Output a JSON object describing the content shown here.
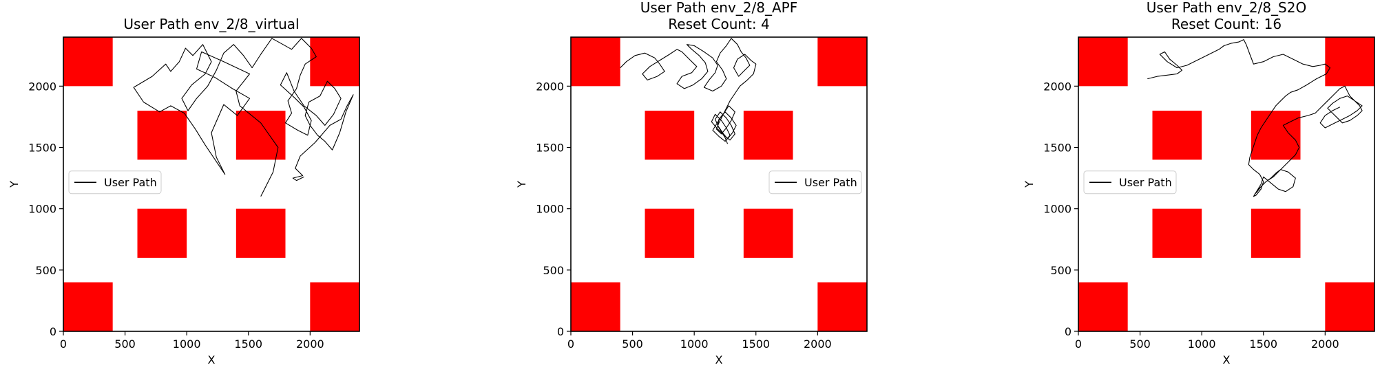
{
  "chart_data": [
    {
      "type": "line",
      "title": "User Path env_2/8_virtual",
      "subtitle": "",
      "xlabel": "X",
      "ylabel": "Y",
      "xlim": [
        0,
        2400
      ],
      "ylim": [
        0,
        2400
      ],
      "xticks": [
        0,
        500,
        1000,
        1500,
        2000
      ],
      "yticks": [
        0,
        500,
        1000,
        1500,
        2000
      ],
      "legend": {
        "label": "User Path",
        "placement": "center-left"
      },
      "obstacle_color": "#ff0000",
      "obstacles": [
        [
          0,
          2000,
          400,
          2400
        ],
        [
          2000,
          2000,
          2400,
          2400
        ],
        [
          600,
          1400,
          1000,
          1800
        ],
        [
          1400,
          1400,
          1800,
          1800
        ],
        [
          600,
          600,
          1000,
          1000
        ],
        [
          1400,
          600,
          1800,
          1000
        ],
        [
          0,
          0,
          400,
          400
        ],
        [
          2000,
          0,
          2400,
          400
        ]
      ],
      "series": [
        {
          "x": [
            1600,
            1700,
            1740,
            1600,
            1430,
            1400,
            1510,
            1300,
            1120,
            1080,
            1230,
            1370,
            1510,
            1410,
            1300,
            1200,
            1240,
            1310,
            1150,
            1070,
            980,
            870,
            780,
            650,
            570,
            720,
            830,
            870,
            940,
            990,
            1050,
            1130,
            1200,
            1150,
            1040,
            960,
            1010,
            1080,
            1170,
            1240,
            1300,
            1380,
            1460,
            1530,
            1600,
            1690,
            1780,
            1850,
            1930,
            2010,
            2050,
            1960,
            1920,
            1890,
            1820,
            1850,
            1800,
            1900,
            1980,
            2010,
            1950,
            1880,
            1760,
            1810,
            1870,
            1950,
            2050,
            2120,
            2190,
            2250,
            2200,
            2140,
            2080,
            1990,
            1960,
            2000,
            2060,
            2120,
            2180,
            2240,
            2290,
            2350,
            2300,
            2250,
            2160,
            2040,
            1920,
            1880,
            1940,
            1860,
            1890,
            1950
          ],
          "y": [
            1100,
            1300,
            1500,
            1700,
            1840,
            1960,
            2100,
            2200,
            2280,
            2140,
            2070,
            1980,
            1900,
            1760,
            1850,
            1620,
            1420,
            1280,
            1520,
            1650,
            1780,
            1840,
            1790,
            1870,
            1990,
            2080,
            2180,
            2120,
            2200,
            2310,
            2250,
            2340,
            2200,
            2100,
            2010,
            1900,
            1800,
            1900,
            2000,
            2130,
            2270,
            2340,
            2250,
            2150,
            2260,
            2390,
            2340,
            2300,
            2390,
            2310,
            2240,
            2180,
            2090,
            1980,
            1880,
            1780,
            1700,
            1640,
            1600,
            1720,
            1830,
            1900,
            2010,
            2110,
            1960,
            1840,
            1760,
            1680,
            1770,
            1900,
            1980,
            2040,
            1920,
            1870,
            1760,
            1680,
            1600,
            1550,
            1480,
            1620,
            1790,
            1930,
            1840,
            1730,
            1680,
            1540,
            1430,
            1330,
            1270,
            1250,
            1230,
            1260
          ]
        }
      ]
    },
    {
      "type": "line",
      "title": "User Path env_2/8_APF",
      "subtitle": "Reset Count: 4",
      "xlabel": "X",
      "ylabel": "Y",
      "xlim": [
        0,
        2400
      ],
      "ylim": [
        0,
        2400
      ],
      "xticks": [
        0,
        500,
        1000,
        1500,
        2000
      ],
      "yticks": [
        0,
        500,
        1000,
        1500,
        2000
      ],
      "legend": {
        "label": "User Path",
        "placement": "center-right"
      },
      "obstacle_color": "#ff0000",
      "obstacles": [
        [
          0,
          2000,
          400,
          2400
        ],
        [
          2000,
          2000,
          2400,
          2400
        ],
        [
          600,
          1400,
          1000,
          1800
        ],
        [
          1400,
          1400,
          1800,
          1800
        ],
        [
          600,
          600,
          1000,
          1000
        ],
        [
          1400,
          600,
          1800,
          1000
        ],
        [
          0,
          0,
          400,
          400
        ],
        [
          2000,
          0,
          2400,
          400
        ]
      ],
      "series": [
        {
          "x": [
            400,
            450,
            520,
            600,
            680,
            720,
            760,
            700,
            620,
            580,
            640,
            720,
            800,
            860,
            900,
            960,
            1020,
            980,
            900,
            860,
            920,
            990,
            1060,
            1110,
            1090,
            1040,
            980,
            940,
            1000,
            1080,
            1150,
            1190,
            1170,
            1120,
            1080,
            1150,
            1220,
            1260,
            1230,
            1180,
            1210,
            1260,
            1300,
            1350,
            1380,
            1420,
            1450,
            1400,
            1360,
            1320,
            1350,
            1410,
            1460,
            1500,
            1480,
            1430,
            1370,
            1330,
            1290,
            1260,
            1230,
            1200,
            1180,
            1220,
            1260,
            1300,
            1330,
            1280,
            1240,
            1200,
            1190,
            1230,
            1270,
            1310,
            1340,
            1300,
            1250,
            1210,
            1180,
            1150,
            1200,
            1250,
            1290,
            1260,
            1220,
            1170,
            1140,
            1190,
            1240,
            1290,
            1330,
            1300,
            1260,
            1210,
            1170,
            1200,
            1250,
            1270
          ],
          "y": [
            2150,
            2200,
            2250,
            2270,
            2230,
            2180,
            2120,
            2080,
            2050,
            2100,
            2160,
            2210,
            2260,
            2300,
            2280,
            2220,
            2160,
            2110,
            2080,
            2020,
            1980,
            2010,
            2060,
            2120,
            2190,
            2250,
            2300,
            2340,
            2330,
            2280,
            2230,
            2170,
            2110,
            2050,
            1990,
            1960,
            2000,
            2060,
            2130,
            2200,
            2270,
            2330,
            2390,
            2340,
            2280,
            2230,
            2170,
            2120,
            2080,
            2150,
            2220,
            2260,
            2210,
            2180,
            2100,
            2050,
            2000,
            1940,
            1880,
            1820,
            1760,
            1700,
            1650,
            1610,
            1660,
            1720,
            1790,
            1840,
            1780,
            1730,
            1680,
            1620,
            1570,
            1620,
            1680,
            1740,
            1790,
            1740,
            1690,
            1640,
            1590,
            1550,
            1600,
            1660,
            1720,
            1770,
            1710,
            1650,
            1600,
            1560,
            1610,
            1680,
            1740,
            1790,
            1730,
            1660,
            1580,
            1530
          ]
        }
      ]
    },
    {
      "type": "line",
      "title": "User Path env_2/8_S2O",
      "subtitle": "Reset Count: 16",
      "xlabel": "X",
      "ylabel": "Y",
      "xlim": [
        0,
        2400
      ],
      "ylim": [
        0,
        2400
      ],
      "xticks": [
        0,
        500,
        1000,
        1500,
        2000
      ],
      "yticks": [
        0,
        500,
        1000,
        1500,
        2000
      ],
      "legend": {
        "label": "User Path",
        "placement": "center-left"
      },
      "obstacle_color": "#ff0000",
      "obstacles": [
        [
          0,
          2000,
          400,
          2400
        ],
        [
          2000,
          2000,
          2400,
          2400
        ],
        [
          600,
          1400,
          1000,
          1800
        ],
        [
          1400,
          1400,
          1800,
          1800
        ],
        [
          600,
          600,
          1000,
          1000
        ],
        [
          1400,
          600,
          1800,
          1000
        ],
        [
          0,
          0,
          400,
          400
        ],
        [
          2000,
          0,
          2400,
          400
        ]
      ],
      "series": [
        {
          "x": [
            560,
            640,
            720,
            800,
            840,
            800,
            740,
            700,
            660,
            720,
            800,
            880,
            960,
            1040,
            1100,
            1140,
            1180,
            1240,
            1300,
            1340,
            1360,
            1390,
            1420,
            1500,
            1580,
            1660,
            1740,
            1820,
            1900,
            1960,
            2000,
            2040,
            2010,
            1930,
            1850,
            1780,
            1720,
            1680,
            1640,
            1600,
            1560,
            1520,
            1480,
            1450,
            1430,
            1410,
            1390,
            1380,
            1420,
            1470,
            1500,
            1480,
            1440,
            1420,
            1450,
            1480,
            1500,
            1560,
            1620,
            1680,
            1740,
            1760,
            1700,
            1640,
            1600,
            1560,
            1520,
            1480,
            1450,
            1430,
            1460,
            1520,
            1580,
            1640,
            1700,
            1760,
            1790,
            1760,
            1700,
            1660,
            1700,
            1780,
            1860,
            1920,
            1960,
            2000,
            2040,
            2080,
            2120,
            2160,
            2180,
            2200,
            2240,
            2280,
            2300,
            2260,
            2200,
            2140,
            2100,
            2060,
            2020,
            2060,
            2120,
            2180,
            2240,
            2300,
            2260,
            2200,
            2140,
            2080,
            2040,
            2000,
            1960,
            2000,
            2060,
            2120
          ],
          "y": [
            2060,
            2080,
            2090,
            2100,
            2130,
            2170,
            2220,
            2280,
            2260,
            2200,
            2150,
            2170,
            2210,
            2250,
            2280,
            2300,
            2330,
            2350,
            2360,
            2380,
            2340,
            2260,
            2180,
            2200,
            2240,
            2260,
            2220,
            2180,
            2160,
            2170,
            2180,
            2150,
            2100,
            2060,
            2010,
            1970,
            1950,
            1920,
            1880,
            1840,
            1780,
            1720,
            1660,
            1600,
            1540,
            1480,
            1420,
            1360,
            1320,
            1280,
            1220,
            1160,
            1110,
            1100,
            1150,
            1200,
            1260,
            1210,
            1160,
            1140,
            1180,
            1250,
            1300,
            1320,
            1290,
            1250,
            1220,
            1180,
            1140,
            1120,
            1160,
            1220,
            1260,
            1320,
            1380,
            1440,
            1500,
            1560,
            1620,
            1680,
            1700,
            1740,
            1760,
            1780,
            1820,
            1860,
            1900,
            1940,
            1980,
            2000,
            1960,
            1920,
            1880,
            1840,
            1800,
            1760,
            1720,
            1700,
            1740,
            1780,
            1820,
            1860,
            1900,
            1920,
            1880,
            1840,
            1800,
            1760,
            1730,
            1700,
            1680,
            1660,
            1700,
            1760,
            1800,
            1830
          ]
        }
      ]
    }
  ]
}
